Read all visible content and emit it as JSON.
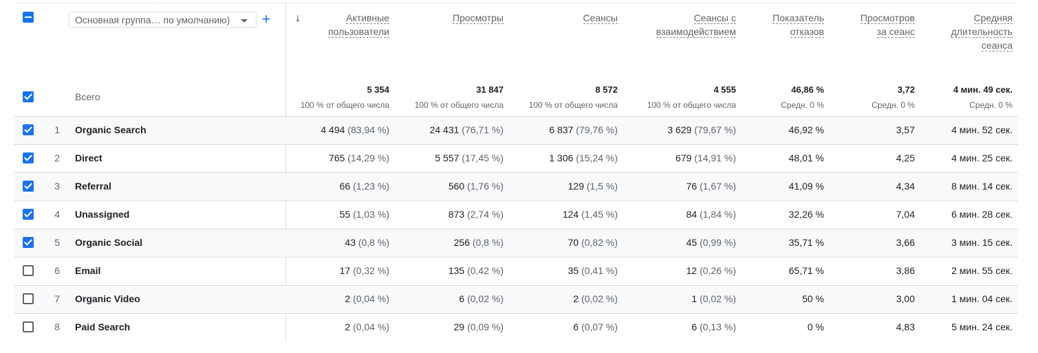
{
  "group_selector": {
    "label": "Основная группа… по умолчанию)",
    "add_icon": "plus-icon",
    "arrow_icon": "caret-down-icon"
  },
  "sort_icon": "arrow-down-icon",
  "columns": [
    {
      "line1": "Активные",
      "line2": "пользователи",
      "line3": ""
    },
    {
      "line1": "Просмотры",
      "line2": "",
      "line3": ""
    },
    {
      "line1": "Сеансы",
      "line2": "",
      "line3": ""
    },
    {
      "line1": "Сеансы с",
      "line2": "взаимодействием",
      "line3": ""
    },
    {
      "line1": "Показатель",
      "line2": "отказов",
      "line3": ""
    },
    {
      "line1": "Просмотров",
      "line2": "за сеанс",
      "line3": ""
    },
    {
      "line1": "Средняя",
      "line2": "длительность",
      "line3": "сеанса"
    }
  ],
  "totals": {
    "label": "Всего",
    "values": [
      "5 354",
      "31 847",
      "8 572",
      "4 555",
      "46,86 %",
      "3,72",
      "4 мин. 49 сек."
    ],
    "subs": [
      "100 % от общего числа",
      "100 % от общего числа",
      "100 % от общего числа",
      "100 % от общего числа",
      "Средн. 0 %",
      "Средн. 0 %",
      "Средн. 0 %"
    ]
  },
  "rows": [
    {
      "n": "1",
      "name": "Organic Search",
      "checked": true,
      "cells": [
        [
          "4 494",
          "(83,94 %)"
        ],
        [
          "24 431",
          "(76,71 %)"
        ],
        [
          "6 837",
          "(79,76 %)"
        ],
        [
          "3 629",
          "(79,67 %)"
        ],
        [
          "46,92 %",
          ""
        ],
        [
          "3,57",
          ""
        ],
        [
          "4 мин. 52 сек.",
          ""
        ]
      ]
    },
    {
      "n": "2",
      "name": "Direct",
      "checked": true,
      "cells": [
        [
          "765",
          "(14,29 %)"
        ],
        [
          "5 557",
          "(17,45 %)"
        ],
        [
          "1 306",
          "(15,24 %)"
        ],
        [
          "679",
          "(14,91 %)"
        ],
        [
          "48,01 %",
          ""
        ],
        [
          "4,25",
          ""
        ],
        [
          "4 мин. 25 сек.",
          ""
        ]
      ]
    },
    {
      "n": "3",
      "name": "Referral",
      "checked": true,
      "cells": [
        [
          "66",
          "(1,23 %)"
        ],
        [
          "560",
          "(1,76 %)"
        ],
        [
          "129",
          "(1,5 %)"
        ],
        [
          "76",
          "(1,67 %)"
        ],
        [
          "41,09 %",
          ""
        ],
        [
          "4,34",
          ""
        ],
        [
          "8 мин. 14 сек.",
          ""
        ]
      ]
    },
    {
      "n": "4",
      "name": "Unassigned",
      "checked": true,
      "cells": [
        [
          "55",
          "(1,03 %)"
        ],
        [
          "873",
          "(2,74 %)"
        ],
        [
          "124",
          "(1,45 %)"
        ],
        [
          "84",
          "(1,84 %)"
        ],
        [
          "32,26 %",
          ""
        ],
        [
          "7,04",
          ""
        ],
        [
          "6 мин. 28 сек.",
          ""
        ]
      ]
    },
    {
      "n": "5",
      "name": "Organic Social",
      "checked": true,
      "cells": [
        [
          "43",
          "(0,8 %)"
        ],
        [
          "256",
          "(0,8 %)"
        ],
        [
          "70",
          "(0,82 %)"
        ],
        [
          "45",
          "(0,99 %)"
        ],
        [
          "35,71 %",
          ""
        ],
        [
          "3,66",
          ""
        ],
        [
          "3 мин. 15 сек.",
          ""
        ]
      ]
    },
    {
      "n": "6",
      "name": "Email",
      "checked": false,
      "cells": [
        [
          "17",
          "(0,32 %)"
        ],
        [
          "135",
          "(0,42 %)"
        ],
        [
          "35",
          "(0,41 %)"
        ],
        [
          "12",
          "(0,26 %)"
        ],
        [
          "65,71 %",
          ""
        ],
        [
          "3,86",
          ""
        ],
        [
          "2 мин. 55 сек.",
          ""
        ]
      ]
    },
    {
      "n": "7",
      "name": "Organic Video",
      "checked": false,
      "cells": [
        [
          "2",
          "(0,04 %)"
        ],
        [
          "6",
          "(0,02 %)"
        ],
        [
          "2",
          "(0,02 %)"
        ],
        [
          "1",
          "(0,02 %)"
        ],
        [
          "50 %",
          ""
        ],
        [
          "3,00",
          ""
        ],
        [
          "1 мин. 04 сек.",
          ""
        ]
      ]
    },
    {
      "n": "8",
      "name": "Paid Search",
      "checked": false,
      "cells": [
        [
          "2",
          "(0,04 %)"
        ],
        [
          "29",
          "(0,09 %)"
        ],
        [
          "6",
          "(0,07 %)"
        ],
        [
          "6",
          "(0,13 %)"
        ],
        [
          "0 %",
          ""
        ],
        [
          "4,83",
          ""
        ],
        [
          "5 мин. 24 сек.",
          ""
        ]
      ]
    }
  ]
}
